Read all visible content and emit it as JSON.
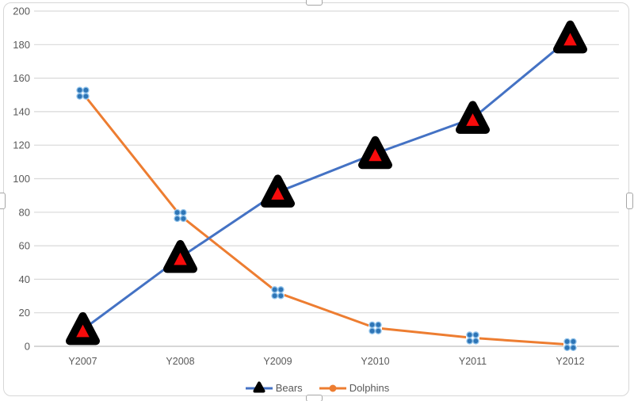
{
  "chart_data": {
    "type": "line",
    "title": "",
    "xlabel": "",
    "ylabel": "",
    "categories": [
      "Y2007",
      "Y2008",
      "Y2009",
      "Y2010",
      "Y2011",
      "Y2012"
    ],
    "series": [
      {
        "name": "Bears",
        "values": [
          10,
          53,
          92,
          115,
          136,
          184
        ],
        "line_color": "#4472C4",
        "marker": "red-triangle-black-border"
      },
      {
        "name": "Dolphins",
        "values": [
          151,
          78,
          32,
          11,
          5,
          1
        ],
        "line_color": "#ED7D31",
        "marker": "blue-dot-cluster"
      }
    ],
    "ylim": [
      0,
      200
    ],
    "yticks": [
      0,
      20,
      40,
      60,
      80,
      100,
      120,
      140,
      160,
      180,
      200
    ],
    "grid": true,
    "legend_position": "bottom"
  },
  "style": {
    "grid_color": "#d9d9d9",
    "axis_line_color": "#bfbfbf",
    "tick_label_color": "#595959",
    "bears_marker_fill": "#f80c0c",
    "bears_marker_stroke": "#000000",
    "dolphins_marker_fill": "#2e75b6",
    "dolphins_marker_stroke": "#8fc1e9",
    "dolphins_marker_bg": "#ffffff",
    "legend_bears_marker": "#000000",
    "legend_dolphins_marker": "#ED7D31"
  },
  "legend": {
    "bears_label": "Bears",
    "dolphins_label": "Dolphins"
  }
}
